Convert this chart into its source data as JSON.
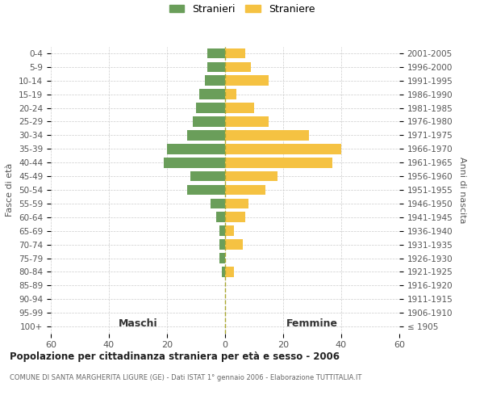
{
  "age_groups": [
    "0-4",
    "5-9",
    "10-14",
    "15-19",
    "20-24",
    "25-29",
    "30-34",
    "35-39",
    "40-44",
    "45-49",
    "50-54",
    "55-59",
    "60-64",
    "65-69",
    "70-74",
    "75-79",
    "80-84",
    "85-89",
    "90-94",
    "95-99",
    "100+"
  ],
  "birth_years": [
    "2001-2005",
    "1996-2000",
    "1991-1995",
    "1986-1990",
    "1981-1985",
    "1976-1980",
    "1971-1975",
    "1966-1970",
    "1961-1965",
    "1956-1960",
    "1951-1955",
    "1946-1950",
    "1941-1945",
    "1936-1940",
    "1931-1935",
    "1926-1930",
    "1921-1925",
    "1916-1920",
    "1911-1915",
    "1906-1910",
    "≤ 1905"
  ],
  "males": [
    6,
    6,
    7,
    9,
    10,
    11,
    13,
    20,
    21,
    12,
    13,
    5,
    3,
    2,
    2,
    2,
    1,
    0,
    0,
    0,
    0
  ],
  "females": [
    7,
    9,
    15,
    4,
    10,
    15,
    29,
    40,
    37,
    18,
    14,
    8,
    7,
    3,
    6,
    0,
    3,
    0,
    0,
    0,
    0
  ],
  "male_color": "#6a9e5a",
  "female_color": "#f5c242",
  "background_color": "#ffffff",
  "grid_color": "#cccccc",
  "title": "Popolazione per cittadinanza straniera per età e sesso - 2006",
  "subtitle": "COMUNE DI SANTA MARGHERITA LIGURE (GE) - Dati ISTAT 1° gennaio 2006 - Elaborazione TUTTITALIA.IT",
  "xlabel_left": "Maschi",
  "xlabel_right": "Femmine",
  "ylabel_left": "Fasce di età",
  "ylabel_right": "Anni di nascita",
  "legend_male": "Stranieri",
  "legend_female": "Straniere",
  "xlim": 60,
  "dashed_line_color": "#aaa830"
}
